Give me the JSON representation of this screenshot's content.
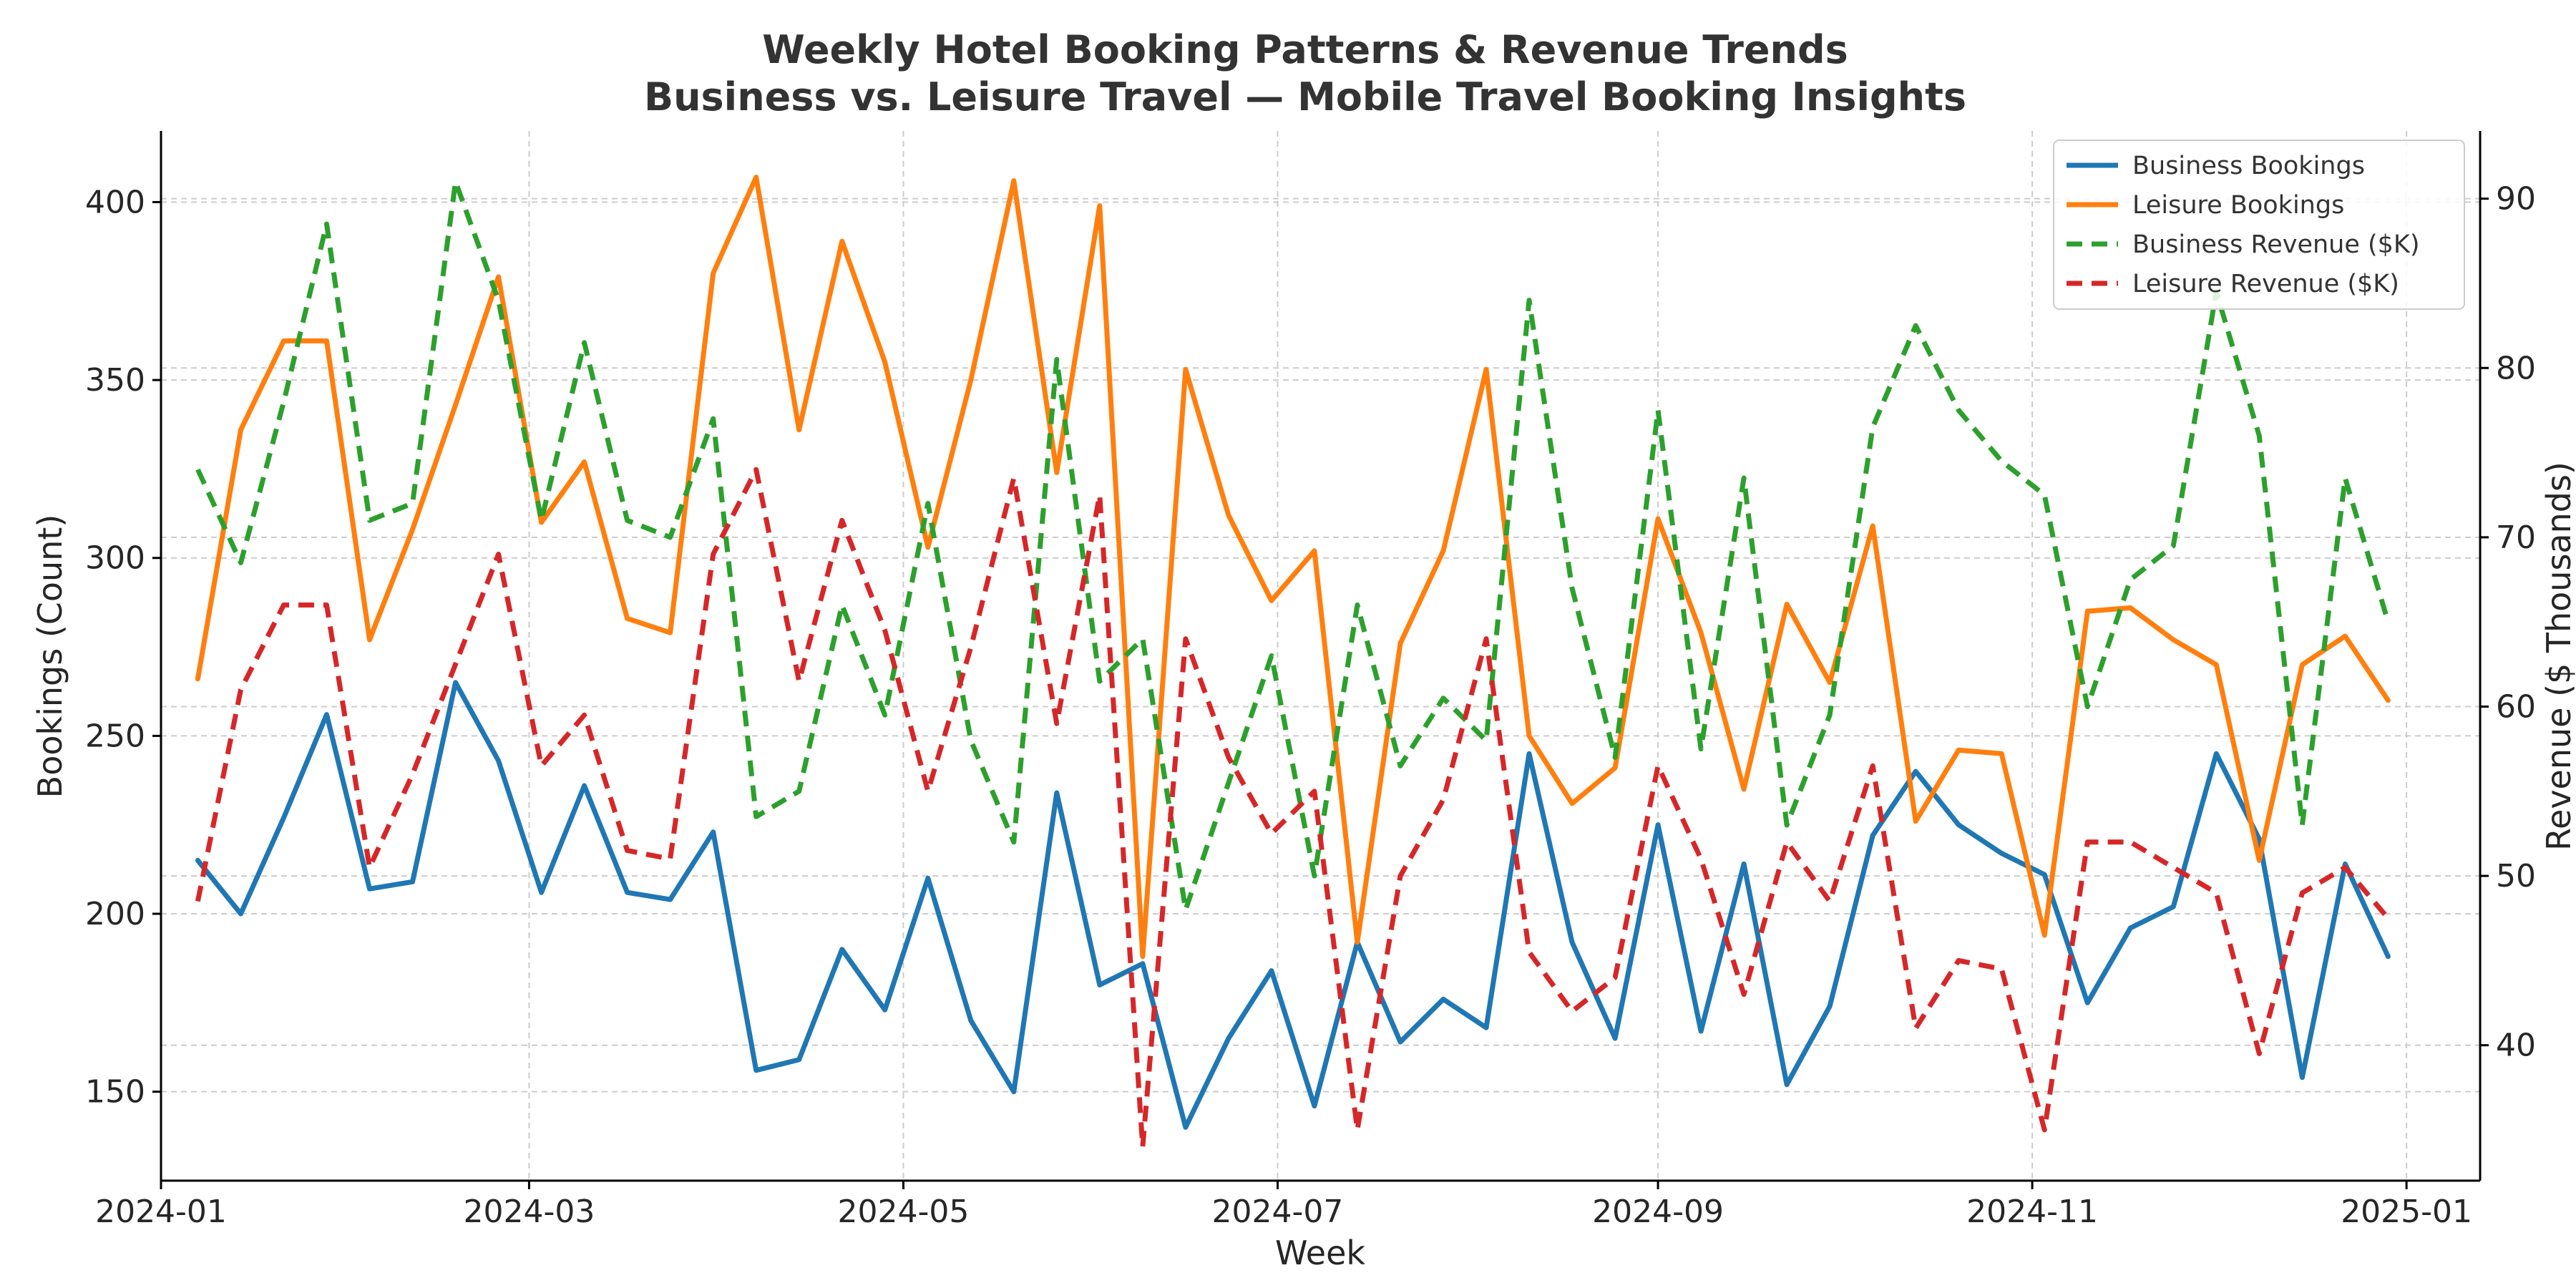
{
  "chart_data": {
    "type": "line",
    "title": "Weekly Hotel Booking Patterns & Revenue Trends",
    "subtitle": "Business vs. Leisure Travel — Mobile Travel Booking Insights",
    "xlabel": "Week",
    "ylabel_left": "Bookings (Count)",
    "ylabel_right": "Revenue ($ Thousands)",
    "x_start": "2024-01-07",
    "x_step_days": 7,
    "xlim": [
      "2024-01-01",
      "2025-01-13"
    ],
    "x_ticks": [
      "2024-01",
      "2024-03",
      "2024-05",
      "2024-07",
      "2024-09",
      "2024-11",
      "2025-01"
    ],
    "ylim_left": [
      125,
      420
    ],
    "yticks_left": [
      150,
      200,
      250,
      300,
      350,
      400
    ],
    "ylim_right": [
      32,
      94
    ],
    "yticks_right": [
      40,
      50,
      60,
      70,
      80,
      90
    ],
    "grid": true,
    "legend_position": "top-right",
    "series": [
      {
        "name": "Business Bookings",
        "axis": "left",
        "style": "solid",
        "color": "#1f77b4",
        "values": [
          215,
          200,
          227,
          256,
          207,
          209,
          265,
          243,
          206,
          236,
          206,
          204,
          223,
          156,
          159,
          190,
          173,
          210,
          170,
          150,
          234,
          180,
          186,
          140,
          165,
          184,
          146,
          192,
          164,
          176,
          168,
          245,
          192,
          165,
          225,
          167,
          214,
          152,
          174,
          222,
          240,
          225,
          217,
          211,
          175,
          196,
          202,
          245,
          221,
          154,
          214,
          188
        ]
      },
      {
        "name": "Leisure Bookings",
        "axis": "left",
        "style": "solid",
        "color": "#ff7f0e",
        "values": [
          266,
          336,
          361,
          361,
          277,
          308,
          343,
          379,
          310,
          327,
          283,
          279,
          380,
          407,
          336,
          389,
          355,
          303,
          350,
          406,
          324,
          399,
          188,
          353,
          312,
          288,
          302,
          192,
          276,
          302,
          353,
          250,
          231,
          241,
          311,
          279,
          235,
          287,
          265,
          309,
          226,
          246,
          245,
          194,
          285,
          286,
          277,
          270,
          215,
          270,
          278,
          260
        ]
      },
      {
        "name": "Business Revenue ($K)",
        "axis": "right",
        "style": "dashed",
        "color": "#2ca02c",
        "values": [
          74,
          68.5,
          78,
          88.5,
          71,
          72,
          91,
          84,
          71,
          81.5,
          71,
          70,
          77,
          53.5,
          55,
          66,
          59.5,
          72,
          58,
          52,
          80.5,
          61.5,
          64,
          48,
          55.5,
          63,
          50,
          66,
          56.5,
          60.5,
          58,
          84,
          67,
          57,
          77.5,
          57.5,
          73.5,
          53,
          59.5,
          76.5,
          82.5,
          77.5,
          74.5,
          72.5,
          60,
          67.5,
          69.5,
          84.5,
          76,
          53,
          73.5,
          65
        ]
      },
      {
        "name": "Leisure Revenue ($K)",
        "axis": "right",
        "style": "dashed",
        "color": "#d62728",
        "values": [
          48.5,
          61,
          66,
          66,
          50.5,
          56,
          62.5,
          69,
          56.5,
          59.5,
          51.5,
          51,
          69,
          74,
          61.5,
          71,
          64.5,
          55,
          63.5,
          73.5,
          59,
          72.5,
          34,
          64,
          57,
          52.5,
          55,
          35,
          50,
          54.5,
          64,
          45.5,
          42,
          44,
          56.5,
          51,
          43,
          52,
          48.5,
          56.5,
          41,
          45,
          44.5,
          35,
          52,
          52,
          50.5,
          49,
          39.5,
          49,
          50.5,
          47.5
        ]
      }
    ]
  }
}
